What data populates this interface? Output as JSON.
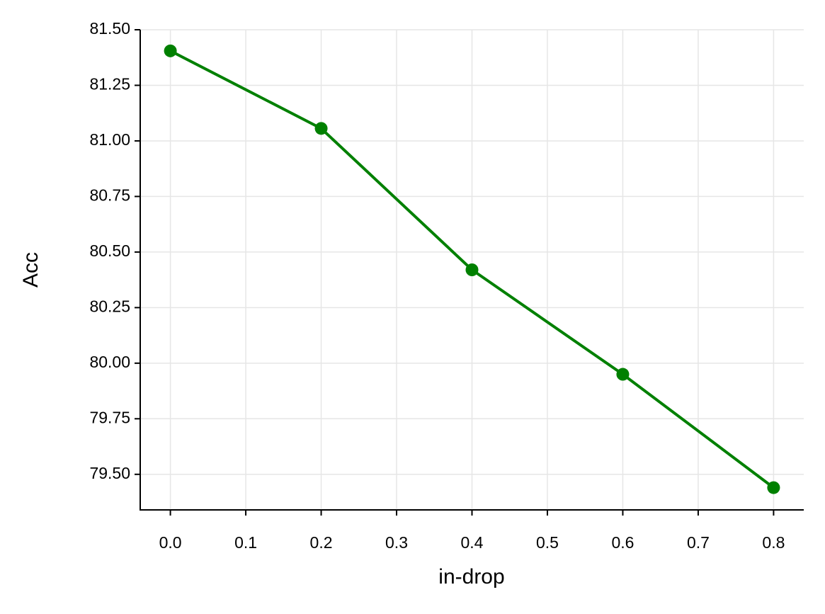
{
  "chart_data": {
    "type": "line",
    "x_label": "in-drop",
    "y_label": "Acc",
    "x": [
      0.0,
      0.2,
      0.4,
      0.6,
      0.8
    ],
    "series": [
      {
        "name": "Acc",
        "color": "#008000",
        "values": [
          81.405,
          81.056,
          80.42,
          79.95,
          79.44
        ]
      }
    ],
    "xlim": [
      -0.04,
      0.84
    ],
    "xticks": [
      {
        "value": 0,
        "label": "0.0"
      },
      0.1,
      0.2,
      0.3,
      0.4,
      0.5,
      0.6,
      0.7,
      0.8
    ],
    "ylim": [
      79.34,
      81.5
    ],
    "yticks": [
      {
        "value": 79.5,
        "label": "79.50"
      },
      {
        "value": 79.75,
        "label": "79.75"
      },
      {
        "value": 80,
        "label": "80.00"
      },
      {
        "value": 80.25,
        "label": "80.25"
      },
      {
        "value": 80.5,
        "label": "80.50"
      },
      {
        "value": 80.75,
        "label": "80.75"
      },
      {
        "value": 81,
        "label": "81.00"
      },
      {
        "value": 81.25,
        "label": "81.25"
      },
      {
        "value": 81.5,
        "label": "81.50"
      }
    ],
    "grid": true,
    "legend": false
  }
}
